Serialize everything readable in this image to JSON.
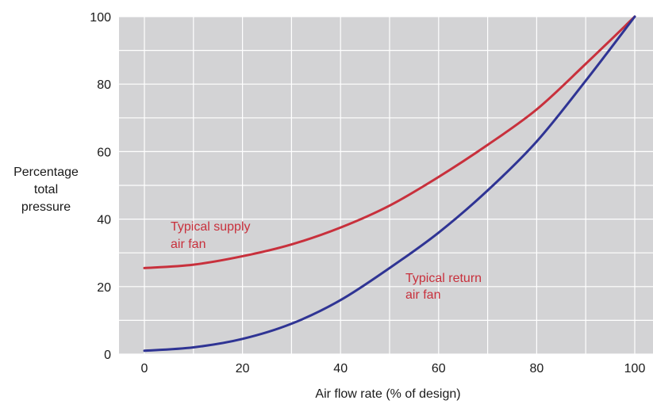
{
  "chart_data": {
    "type": "line",
    "title": "",
    "xlabel": "Air flow rate (% of design)",
    "ylabel": [
      "Percentage",
      "total",
      "pressure"
    ],
    "xlim": [
      0,
      100
    ],
    "ylim": [
      0,
      100
    ],
    "x_ticks": [
      "0",
      "20",
      "40",
      "60",
      "80",
      "100"
    ],
    "y_ticks": [
      "0",
      "20",
      "40",
      "60",
      "80",
      "100"
    ],
    "grid": true,
    "plot_background": "#d3d3d5",
    "grid_color": "#ffffff",
    "series": [
      {
        "name": [
          "Typical supply",
          "air fan"
        ],
        "color": "#c8303c",
        "x": [
          0,
          10,
          20,
          30,
          40,
          50,
          60,
          70,
          80,
          90,
          100
        ],
        "y": [
          25.5,
          26.5,
          29,
          32.5,
          37.5,
          44,
          52.5,
          62,
          72.5,
          86,
          100
        ]
      },
      {
        "name": [
          "Typical return",
          "air fan"
        ],
        "color": "#2f3494",
        "x": [
          0,
          10,
          20,
          30,
          40,
          50,
          60,
          70,
          80,
          90,
          100
        ],
        "y": [
          1,
          2,
          4.5,
          9,
          16,
          25.5,
          36,
          48.5,
          63,
          81,
          100
        ]
      }
    ]
  }
}
